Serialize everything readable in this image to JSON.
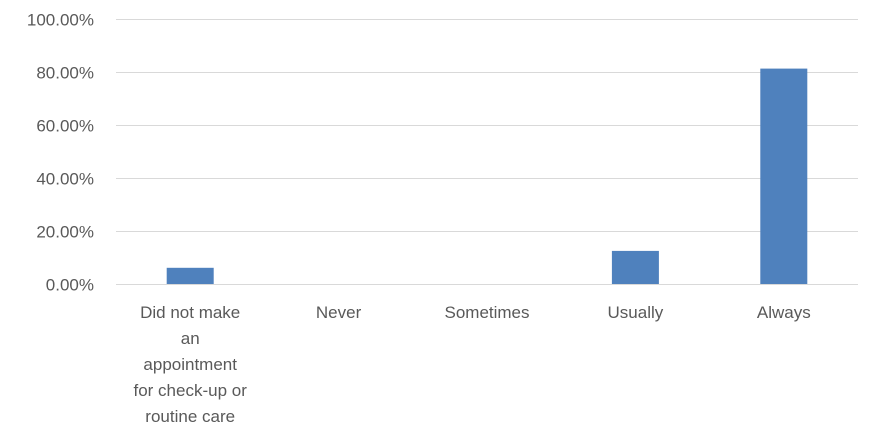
{
  "chart_data": {
    "type": "bar",
    "title": "",
    "xlabel": "",
    "ylabel": "",
    "categories": [
      "Did not make an appointment for check-up or routine care",
      "Never",
      "Sometimes",
      "Usually",
      "Always"
    ],
    "category_label_lines": [
      [
        "Did not make",
        "an",
        "appointment",
        "for check-up or",
        "routine care"
      ],
      [
        "Never"
      ],
      [
        "Sometimes"
      ],
      [
        "Usually"
      ],
      [
        "Always"
      ]
    ],
    "values": [
      6.1,
      0.0,
      0.0,
      12.5,
      81.3
    ],
    "ylim": [
      0,
      100
    ],
    "yticks": [
      0,
      20,
      40,
      60,
      80,
      100
    ],
    "ytick_labels": [
      "0.00%",
      "20.00%",
      "40.00%",
      "60.00%",
      "80.00%",
      "100.00%"
    ],
    "grid": true,
    "legend": "none",
    "colors": {
      "bar": "#4f81bd"
    }
  }
}
